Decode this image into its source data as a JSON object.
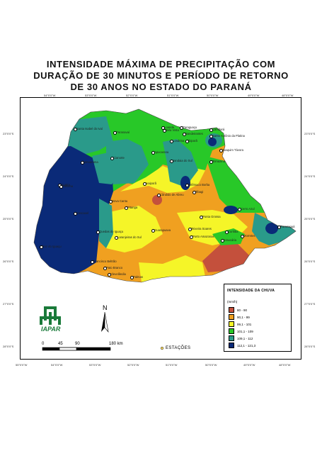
{
  "title_lines": [
    "INTENSIDADE MÁXIMA DE PRECIPITAÇÃO COM",
    "DURAÇÃO DE 30 MINUTOS E PERÍODO DE RETORNO",
    "DE 30 ANOS NO ESTADO DO PARANÁ"
  ],
  "legend": {
    "title": "INTENSIDADE DA CHUVA",
    "unit": "(mm/h)",
    "classes": [
      {
        "label": "80 - 90",
        "color": "#c4503c"
      },
      {
        "label": "90,1 - 99",
        "color": "#f0a020"
      },
      {
        "label": "99,1 - 101",
        "color": "#f5f528"
      },
      {
        "label": "101,1 - 109",
        "color": "#28c828"
      },
      {
        "label": "109,1 - 112",
        "color": "#2a9a8a"
      },
      {
        "label": "112,1 - 121,3",
        "color": "#0a2a78"
      }
    ]
  },
  "scale": {
    "labels": [
      "0",
      "45",
      "90",
      "180 km"
    ]
  },
  "north": "N",
  "stations_label": "ESTAÇÕES",
  "logo_text": "IAPAR",
  "cities": [
    "Santa Isabel do Ivaí",
    "Paranavaí",
    "Loanda",
    "Bela Vista",
    "Paraguaçu",
    "Bandeirantes",
    "Cambará",
    "Joaquim Távora",
    "Santo Antônio da Platina",
    "Londrina",
    "Ibiporã",
    "Apucarana",
    "Jandaia do Sul",
    "Umuarama",
    "Cianorte",
    "Tomazina",
    "Guaíra",
    "Ivaiporã",
    "Cândido de Abreu",
    "Telêmaco Borba",
    "Tibagi",
    "Palotina",
    "Cascavel",
    "Nova Cantu",
    "Pitanga",
    "Ponta Grossa",
    "Cerro Azul",
    "Foz do Iguaçu",
    "Quedas do Iguaçu",
    "Laranjeiras do Sul",
    "Guarapuava",
    "Teixeira Soares",
    "Curitiba",
    "Porto Amazonas",
    "Araucária",
    "Morretes",
    "Paranaguá",
    "Francisco Beltrão",
    "Pato Branco",
    "Clevelândia",
    "Palmas"
  ]
}
